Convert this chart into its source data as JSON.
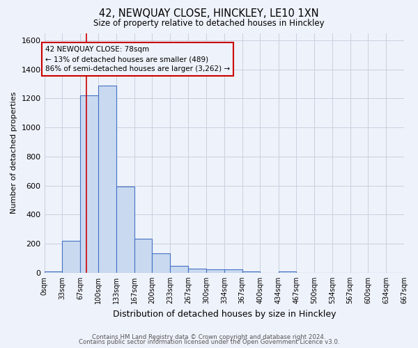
{
  "title": "42, NEWQUAY CLOSE, HINCKLEY, LE10 1XN",
  "subtitle": "Size of property relative to detached houses in Hinckley",
  "xlabel": "Distribution of detached houses by size in Hinckley",
  "ylabel": "Number of detached properties",
  "footer_line1": "Contains HM Land Registry data © Crown copyright and database right 2024.",
  "footer_line2": "Contains public sector information licensed under the Open Government Licence v3.0.",
  "bins": [
    0,
    33,
    67,
    100,
    133,
    167,
    200,
    233,
    267,
    300,
    334,
    367,
    400,
    434,
    467,
    500,
    534,
    567,
    600,
    634,
    667
  ],
  "counts": [
    10,
    220,
    1220,
    1290,
    595,
    235,
    135,
    48,
    28,
    22,
    22,
    10,
    0,
    10,
    0,
    0,
    0,
    0,
    0,
    0
  ],
  "bar_facecolor": "#c9d9f0",
  "bar_edgecolor": "#4472c4",
  "grid_color": "#c8d0e0",
  "background_color": "#eef2fa",
  "property_value": 78,
  "vline_color": "#cc0000",
  "annotation_line1": "42 NEWQUAY CLOSE: 78sqm",
  "annotation_line2": "← 13% of detached houses are smaller (489)",
  "annotation_line3": "86% of semi-detached houses are larger (3,262) →",
  "annotation_box_edgecolor": "#cc0000",
  "ylim": [
    0,
    1650
  ],
  "yticks": [
    0,
    200,
    400,
    600,
    800,
    1000,
    1200,
    1400,
    1600
  ],
  "title_fontsize": 10.5,
  "subtitle_fontsize": 8.5,
  "ylabel_fontsize": 8,
  "xlabel_fontsize": 9,
  "tick_labelsize": 8,
  "xtick_labelsize": 7,
  "footer_fontsize": 6.2
}
